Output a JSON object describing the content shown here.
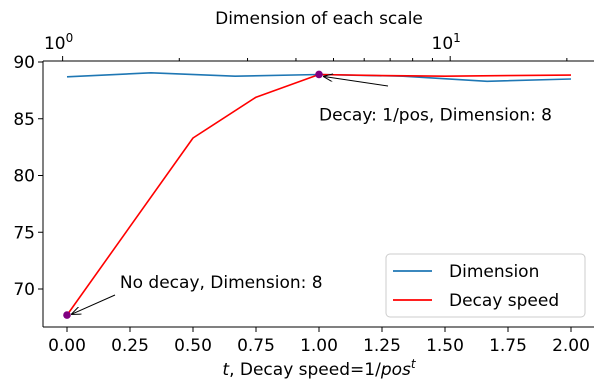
{
  "chart_data": {
    "type": "line",
    "x_axis": {
      "label_prefix": "t",
      "label_rest": ", Decay speed=1/",
      "label_italic": "pos",
      "label_sup": "t",
      "lim": [
        -0.05,
        2.05
      ],
      "ticks": [
        0.0,
        0.25,
        0.5,
        0.75,
        1.0,
        1.25,
        1.5,
        1.75,
        2.0
      ],
      "tick_labels": [
        "0.00",
        "0.25",
        "0.50",
        "0.75",
        "1.00",
        "1.25",
        "1.50",
        "1.75",
        "2.00"
      ]
    },
    "y_axis": {
      "lim": [
        66.7,
        90.3
      ],
      "ticks": [
        70,
        75,
        80,
        85,
        90
      ],
      "tick_labels": [
        "70",
        "75",
        "80",
        "85",
        "90"
      ]
    },
    "top_axis": {
      "label": "Dimension of each scale",
      "scale": "log",
      "lim": [
        0.89,
        23.5
      ],
      "major_ticks": [
        {
          "value": 1,
          "base": "10",
          "exp": "0"
        },
        {
          "value": 10,
          "base": "10",
          "exp": "1"
        }
      ],
      "minor_ticks": [
        2,
        3,
        4,
        5,
        6,
        7,
        8,
        9,
        20
      ]
    },
    "series": [
      {
        "name": "Dimension",
        "color": "#1f77b4",
        "x": [
          0.0,
          0.333,
          0.667,
          1.0,
          1.333,
          1.667,
          2.0
        ],
        "y": [
          88.7,
          89.05,
          88.75,
          88.9,
          88.75,
          88.3,
          88.5
        ]
      },
      {
        "name": "Decay speed",
        "color": "#ff0000",
        "x": [
          0.0,
          0.5,
          0.75,
          1.0,
          1.25,
          1.5,
          1.75,
          2.0
        ],
        "y": [
          67.7,
          83.3,
          86.9,
          88.9,
          88.8,
          88.75,
          88.8,
          88.85
        ]
      }
    ],
    "highlight_points": [
      {
        "x": 0.0,
        "y": 67.7,
        "color": "#800080"
      },
      {
        "x": 1.0,
        "y": 88.9,
        "color": "#800080"
      }
    ],
    "annotations": [
      {
        "text": "No decay, Dimension: 8",
        "point": [
          0.0,
          67.7
        ],
        "text_pos": [
          0.21,
          70.0
        ]
      },
      {
        "text": "Decay: 1/pos, Dimension: 8",
        "point": [
          1.0,
          88.9
        ],
        "text_pos": [
          1.0,
          86.1
        ]
      }
    ],
    "legend_position": "lower-right",
    "grid": false
  }
}
